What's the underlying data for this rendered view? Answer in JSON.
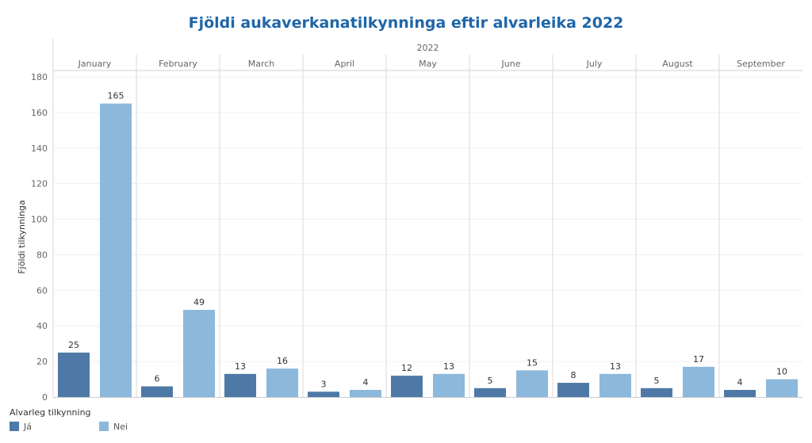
{
  "chart_data": {
    "type": "bar",
    "title": "Fjöldi aukaverkanatilkynninga eftir alvarleika 2022",
    "year_header": "2022",
    "ylabel": "Fjöldi tilkynninga",
    "ylim": [
      0,
      180
    ],
    "yticks": [
      0,
      20,
      40,
      60,
      80,
      100,
      120,
      140,
      160,
      180
    ],
    "categories": [
      "January",
      "February",
      "March",
      "April",
      "May",
      "June",
      "July",
      "August",
      "September"
    ],
    "series": [
      {
        "name": "Já",
        "color": "#4e79a7",
        "values": [
          25,
          6,
          13,
          3,
          12,
          5,
          8,
          5,
          4
        ]
      },
      {
        "name": "Nei",
        "color": "#8cb8db",
        "values": [
          165,
          49,
          16,
          4,
          13,
          15,
          13,
          17,
          10
        ]
      }
    ],
    "legend": {
      "title": "Alvarleg tilkynning",
      "position": "bottom-left"
    },
    "grid": true
  }
}
